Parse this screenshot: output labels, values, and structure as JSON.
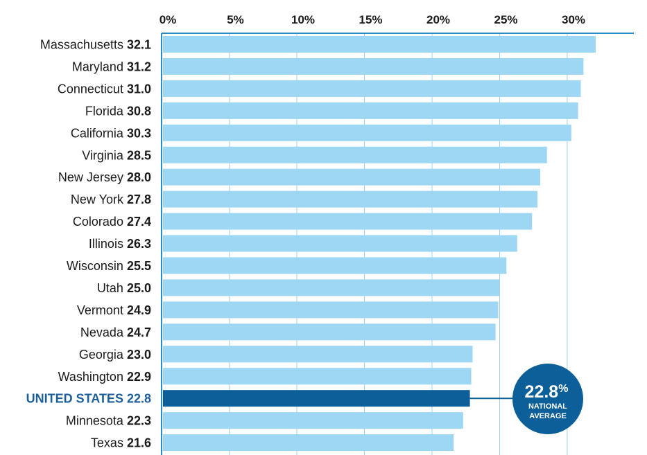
{
  "chart_data": {
    "type": "bar",
    "orientation": "horizontal",
    "x_ticks": [
      "0%",
      "5%",
      "10%",
      "15%",
      "20%",
      "25%",
      "30%"
    ],
    "tick_values": [
      0,
      5,
      10,
      15,
      20,
      25,
      30
    ],
    "xlim": [
      0,
      35
    ],
    "grid": true,
    "categories": [
      "Massachusetts",
      "Maryland",
      "Connecticut",
      "Florida",
      "California",
      "Virginia",
      "New Jersey",
      "New York",
      "Colorado",
      "Illinois",
      "Wisconsin",
      "Utah",
      "Vermont",
      "Nevada",
      "Georgia",
      "Washington",
      "UNITED STATES",
      "Minnesota",
      "Texas"
    ],
    "values": [
      32.1,
      31.2,
      31.0,
      30.8,
      30.3,
      28.5,
      28.0,
      27.8,
      27.4,
      26.3,
      25.5,
      25.0,
      24.9,
      24.7,
      23.0,
      22.9,
      22.8,
      22.3,
      21.6
    ],
    "value_labels": [
      "32.1",
      "31.2",
      "31.0",
      "30.8",
      "30.3",
      "28.5",
      "28.0",
      "27.8",
      "27.4",
      "26.3",
      "25.5",
      "25.0",
      "24.9",
      "24.7",
      "23.0",
      "22.9",
      "22.8",
      "22.3",
      "21.6"
    ],
    "highlight_category": "UNITED STATES",
    "annotation": {
      "value": "22.8",
      "unit": "%",
      "line1": "NATIONAL",
      "line2": "AVERAGE"
    }
  },
  "colors": {
    "bar": "#9dd7f3",
    "highlight": "#0c5f99",
    "highlight_text": "#1b5e9a",
    "badge": "#0c5f99",
    "grid": "#9dd3ee",
    "axis": "#2a8bc6"
  }
}
